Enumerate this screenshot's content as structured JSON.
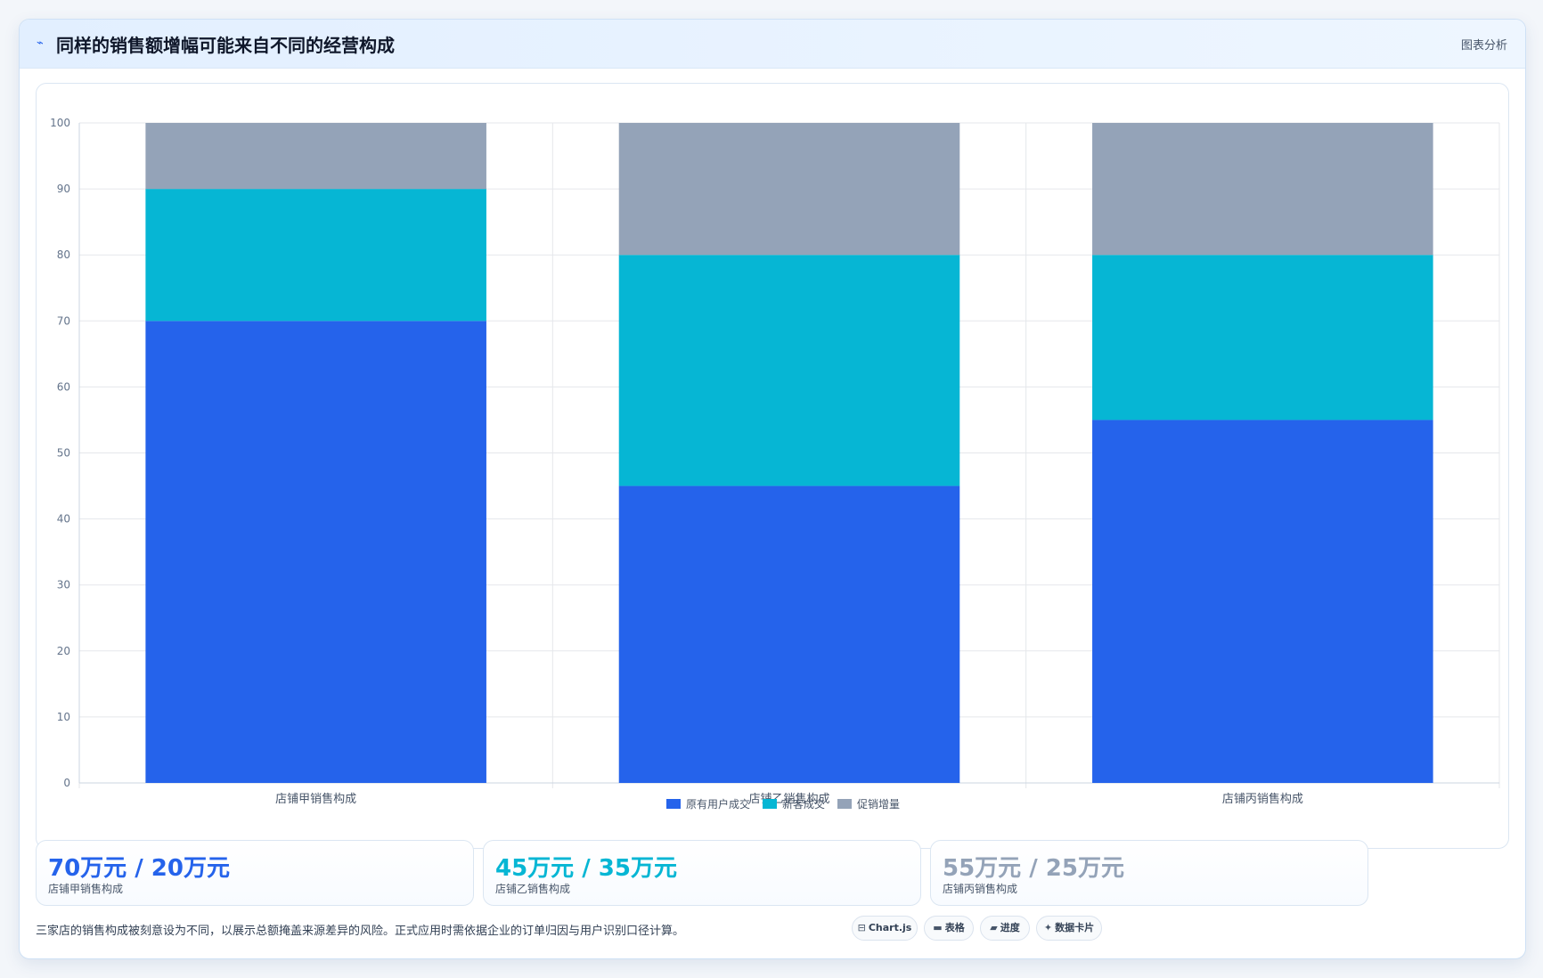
{
  "header": {
    "title": "同样的销售额增幅可能来自不同的经营构成",
    "icon": "trend-line-icon",
    "right_label": "图表分析"
  },
  "chart_data": {
    "type": "bar",
    "stacked": true,
    "categories": [
      "店铺甲销售构成",
      "店铺乙销售构成",
      "店铺丙销售构成"
    ],
    "series": [
      {
        "name": "原有用户成交",
        "color": "#2563eb",
        "values": [
          70,
          45,
          55
        ]
      },
      {
        "name": "新客成交",
        "color": "#06b6d4",
        "values": [
          20,
          35,
          25
        ]
      },
      {
        "name": "促销增量",
        "color": "#94a3b8",
        "values": [
          10,
          20,
          20
        ]
      }
    ],
    "ylim": [
      0,
      100
    ],
    "yticks": [
      0,
      10,
      20,
      30,
      40,
      50,
      60,
      70,
      80,
      90,
      100
    ],
    "grid": true,
    "legend_position": "bottom"
  },
  "stats": [
    {
      "value": "70万元 / 20万元",
      "label": "店铺甲销售构成",
      "color": "#2563eb"
    },
    {
      "value": "45万元 / 35万元",
      "label": "店铺乙销售构成",
      "color": "#06b6d4"
    },
    {
      "value": "55万元 / 25万元",
      "label": "店铺丙销售构成",
      "color": "#94a3b8"
    }
  ],
  "footer": {
    "note": "三家店的销售构成被刻意设为不同，以展示总额掩盖来源差异的风险。正式应用时需依据企业的订单归因与用户识别口径计算。"
  },
  "tags": [
    {
      "glyph": "⊟",
      "label": "Chart.js",
      "icon": "chart-icon"
    },
    {
      "glyph": "▬",
      "label": "表格",
      "icon": "table-icon"
    },
    {
      "glyph": "▰",
      "label": "进度",
      "icon": "progress-icon"
    },
    {
      "glyph": "✦",
      "label": "数据卡片",
      "icon": "card-icon"
    }
  ]
}
